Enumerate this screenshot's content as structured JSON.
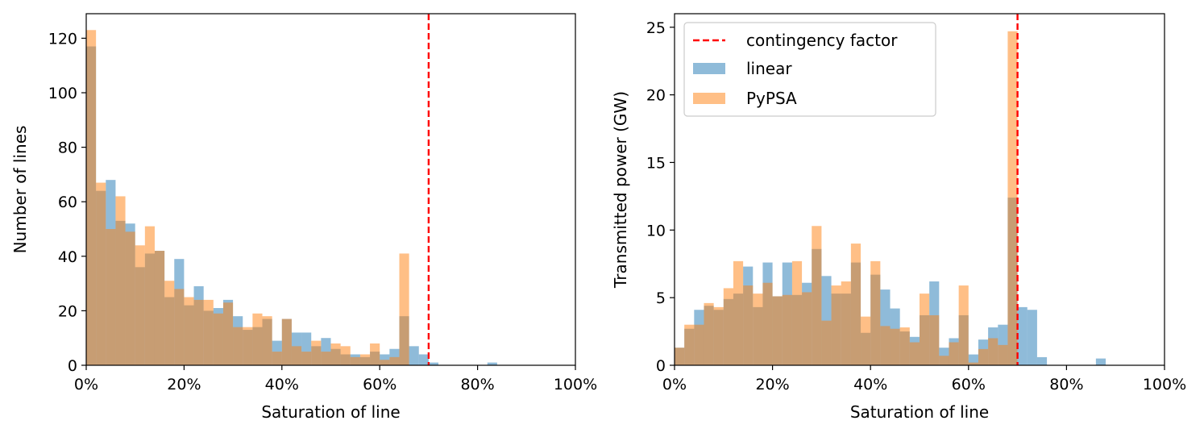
{
  "colors": {
    "linear": "#1f77b4",
    "pypsa": "#ff7f0e",
    "contingency": "#ff0000",
    "bar_opacity": 0.5
  },
  "legend": {
    "placement": "upper-left",
    "entries": [
      {
        "key": "contingency",
        "label": "contingency factor",
        "style": "dashed-line"
      },
      {
        "key": "linear",
        "label": "linear",
        "style": "patch"
      },
      {
        "key": "pypsa",
        "label": "PyPSA",
        "style": "patch"
      }
    ]
  },
  "chart_data": [
    {
      "type": "bar",
      "id": "count",
      "title": "",
      "xlabel": "Saturation of line",
      "ylabel": "Number of lines",
      "xlim": [
        0,
        1
      ],
      "ylim": [
        0,
        129
      ],
      "bin_width": 0.02,
      "xticks": [
        0,
        0.2,
        0.4,
        0.6,
        0.8,
        1.0
      ],
      "xtick_labels": [
        "0%",
        "20%",
        "40%",
        "60%",
        "80%",
        "100%"
      ],
      "yticks": [
        0,
        20,
        40,
        60,
        80,
        100,
        120
      ],
      "ytick_labels": [
        "0",
        "20",
        "40",
        "60",
        "80",
        "100",
        "120"
      ],
      "grid": false,
      "legend": false,
      "vline": {
        "x": 0.7,
        "label": "contingency factor"
      },
      "series": [
        {
          "name": "linear",
          "values": [
            117,
            64,
            68,
            53,
            52,
            36,
            41,
            42,
            25,
            39,
            22,
            29,
            20,
            21,
            24,
            18,
            13,
            14,
            17,
            9,
            17,
            12,
            12,
            7,
            10,
            6,
            4,
            4,
            3,
            5,
            4,
            6,
            18,
            7,
            4,
            1,
            0,
            0,
            0,
            0,
            0,
            1,
            0,
            0,
            0,
            0,
            0,
            0,
            0,
            0
          ]
        },
        {
          "name": "PyPSA",
          "values": [
            123,
            67,
            50,
            62,
            49,
            44,
            51,
            42,
            31,
            28,
            25,
            24,
            24,
            19,
            23,
            14,
            14,
            19,
            18,
            5,
            17,
            7,
            5,
            9,
            5,
            8,
            7,
            3,
            4,
            8,
            2,
            3,
            41,
            0,
            0,
            0,
            0,
            0,
            0,
            0,
            0,
            0,
            0,
            0,
            0,
            0,
            0,
            0,
            0,
            0
          ]
        }
      ]
    },
    {
      "type": "bar",
      "id": "power",
      "title": "",
      "xlabel": "Saturation of line",
      "ylabel": "Transmitted power (GW)",
      "xlim": [
        0,
        1
      ],
      "ylim": [
        0,
        26
      ],
      "bin_width": 0.02,
      "xticks": [
        0,
        0.2,
        0.4,
        0.6,
        0.8,
        1.0
      ],
      "xtick_labels": [
        "0%",
        "20%",
        "40%",
        "60%",
        "80%",
        "100%"
      ],
      "yticks": [
        0,
        5,
        10,
        15,
        20,
        25
      ],
      "ytick_labels": [
        "0",
        "5",
        "10",
        "15",
        "20",
        "25"
      ],
      "grid": false,
      "legend": true,
      "vline": {
        "x": 0.7,
        "label": "contingency factor"
      },
      "series": [
        {
          "name": "linear",
          "values": [
            1.3,
            2.7,
            4.1,
            4.4,
            4.1,
            4.9,
            5.3,
            7.3,
            4.3,
            7.6,
            5.1,
            7.6,
            5.2,
            6.1,
            8.6,
            6.6,
            5.3,
            5.3,
            7.6,
            2.4,
            6.7,
            5.6,
            4.2,
            2.5,
            2.1,
            3.7,
            6.2,
            1.3,
            2.0,
            3.7,
            0.8,
            1.9,
            2.8,
            3.0,
            12.4,
            4.3,
            4.1,
            0.6,
            0,
            0,
            0,
            0,
            0,
            0.5,
            0,
            0,
            0,
            0,
            0,
            0
          ]
        },
        {
          "name": "PyPSA",
          "values": [
            1.3,
            3.0,
            3.0,
            4.6,
            4.3,
            5.7,
            7.7,
            5.9,
            5.3,
            6.1,
            5.1,
            5.2,
            7.7,
            5.4,
            10.3,
            3.3,
            5.9,
            6.2,
            9.0,
            3.6,
            7.7,
            2.9,
            2.7,
            2.8,
            1.7,
            5.3,
            3.7,
            0.7,
            1.7,
            5.9,
            0.2,
            1.2,
            2.0,
            1.5,
            24.7,
            0,
            0,
            0,
            0,
            0,
            0,
            0,
            0,
            0,
            0,
            0,
            0,
            0,
            0,
            0
          ]
        }
      ]
    }
  ]
}
